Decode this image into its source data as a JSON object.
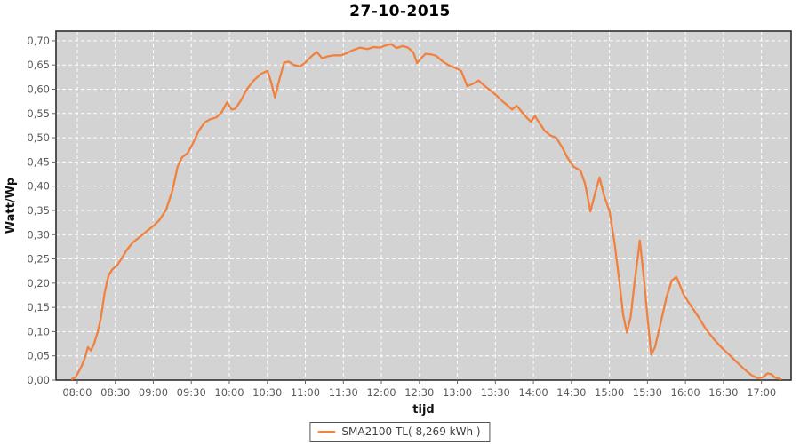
{
  "chart_data": {
    "type": "line",
    "title": "27-10-2015",
    "xlabel": "tijd",
    "ylabel": "Watt/Wp",
    "xlim_hours": [
      7.72,
      17.39
    ],
    "ylim": [
      0,
      0.72
    ],
    "grid": {
      "shown": true,
      "style": "dashed",
      "color": "#ffffff"
    },
    "x_ticks": [
      {
        "hour": 8.0,
        "label": "08:00"
      },
      {
        "hour": 8.5,
        "label": "08:30"
      },
      {
        "hour": 9.0,
        "label": "09:00"
      },
      {
        "hour": 9.5,
        "label": "09:30"
      },
      {
        "hour": 10.0,
        "label": "10:00"
      },
      {
        "hour": 10.5,
        "label": "10:30"
      },
      {
        "hour": 11.0,
        "label": "11:00"
      },
      {
        "hour": 11.5,
        "label": "11:30"
      },
      {
        "hour": 12.0,
        "label": "12:00"
      },
      {
        "hour": 12.5,
        "label": "12:30"
      },
      {
        "hour": 13.0,
        "label": "13:00"
      },
      {
        "hour": 13.5,
        "label": "13:30"
      },
      {
        "hour": 14.0,
        "label": "14:00"
      },
      {
        "hour": 14.5,
        "label": "14:30"
      },
      {
        "hour": 15.0,
        "label": "15:00"
      },
      {
        "hour": 15.5,
        "label": "15:30"
      },
      {
        "hour": 16.0,
        "label": "16:00"
      },
      {
        "hour": 16.5,
        "label": "16:30"
      },
      {
        "hour": 17.0,
        "label": "17:00"
      }
    ],
    "y_ticks": [
      {
        "value": 0.0,
        "label": "0,00"
      },
      {
        "value": 0.05,
        "label": "0,05"
      },
      {
        "value": 0.1,
        "label": "0,10"
      },
      {
        "value": 0.15,
        "label": "0,15"
      },
      {
        "value": 0.2,
        "label": "0,20"
      },
      {
        "value": 0.25,
        "label": "0,25"
      },
      {
        "value": 0.3,
        "label": "0,30"
      },
      {
        "value": 0.35,
        "label": "0,35"
      },
      {
        "value": 0.4,
        "label": "0,40"
      },
      {
        "value": 0.45,
        "label": "0,45"
      },
      {
        "value": 0.5,
        "label": "0,50"
      },
      {
        "value": 0.55,
        "label": "0,55"
      },
      {
        "value": 0.6,
        "label": "0,60"
      },
      {
        "value": 0.65,
        "label": "0,65"
      },
      {
        "value": 0.7,
        "label": "0,70"
      }
    ],
    "legend": {
      "position": "bottom-center",
      "entries": [
        {
          "label": "SMA2100 TL( 8,269 kWh )",
          "color": "#f0813f"
        }
      ]
    },
    "series": [
      {
        "name": "SMA2100 TL( 8,269 kWh )",
        "color": "#f0813f",
        "points": [
          [
            7.93,
            0.0
          ],
          [
            7.98,
            0.006
          ],
          [
            8.02,
            0.018
          ],
          [
            8.06,
            0.03
          ],
          [
            8.1,
            0.046
          ],
          [
            8.14,
            0.068
          ],
          [
            8.18,
            0.061
          ],
          [
            8.22,
            0.075
          ],
          [
            8.27,
            0.1
          ],
          [
            8.31,
            0.128
          ],
          [
            8.36,
            0.18
          ],
          [
            8.41,
            0.215
          ],
          [
            8.46,
            0.228
          ],
          [
            8.52,
            0.236
          ],
          [
            8.58,
            0.25
          ],
          [
            8.65,
            0.268
          ],
          [
            8.73,
            0.284
          ],
          [
            8.82,
            0.295
          ],
          [
            8.92,
            0.308
          ],
          [
            9.0,
            0.318
          ],
          [
            9.08,
            0.33
          ],
          [
            9.17,
            0.352
          ],
          [
            9.25,
            0.39
          ],
          [
            9.32,
            0.44
          ],
          [
            9.38,
            0.46
          ],
          [
            9.45,
            0.468
          ],
          [
            9.52,
            0.488
          ],
          [
            9.6,
            0.515
          ],
          [
            9.68,
            0.532
          ],
          [
            9.75,
            0.538
          ],
          [
            9.83,
            0.542
          ],
          [
            9.9,
            0.553
          ],
          [
            9.97,
            0.573
          ],
          [
            10.03,
            0.558
          ],
          [
            10.08,
            0.56
          ],
          [
            10.15,
            0.576
          ],
          [
            10.23,
            0.6
          ],
          [
            10.32,
            0.618
          ],
          [
            10.42,
            0.632
          ],
          [
            10.5,
            0.638
          ],
          [
            10.55,
            0.615
          ],
          [
            10.6,
            0.583
          ],
          [
            10.65,
            0.615
          ],
          [
            10.72,
            0.655
          ],
          [
            10.78,
            0.657
          ],
          [
            10.85,
            0.65
          ],
          [
            10.93,
            0.647
          ],
          [
            11.0,
            0.655
          ],
          [
            11.08,
            0.668
          ],
          [
            11.15,
            0.677
          ],
          [
            11.22,
            0.664
          ],
          [
            11.3,
            0.668
          ],
          [
            11.38,
            0.67
          ],
          [
            11.47,
            0.67
          ],
          [
            11.55,
            0.675
          ],
          [
            11.63,
            0.681
          ],
          [
            11.72,
            0.686
          ],
          [
            11.82,
            0.683
          ],
          [
            11.9,
            0.687
          ],
          [
            11.98,
            0.686
          ],
          [
            12.07,
            0.691
          ],
          [
            12.13,
            0.693
          ],
          [
            12.2,
            0.685
          ],
          [
            12.28,
            0.689
          ],
          [
            12.35,
            0.686
          ],
          [
            12.42,
            0.676
          ],
          [
            12.47,
            0.654
          ],
          [
            12.53,
            0.665
          ],
          [
            12.58,
            0.673
          ],
          [
            12.65,
            0.672
          ],
          [
            12.72,
            0.669
          ],
          [
            12.8,
            0.658
          ],
          [
            12.88,
            0.65
          ],
          [
            12.97,
            0.644
          ],
          [
            13.05,
            0.638
          ],
          [
            13.13,
            0.606
          ],
          [
            13.2,
            0.611
          ],
          [
            13.28,
            0.618
          ],
          [
            13.35,
            0.608
          ],
          [
            13.43,
            0.598
          ],
          [
            13.5,
            0.589
          ],
          [
            13.58,
            0.577
          ],
          [
            13.65,
            0.568
          ],
          [
            13.72,
            0.558
          ],
          [
            13.78,
            0.566
          ],
          [
            13.85,
            0.553
          ],
          [
            13.92,
            0.54
          ],
          [
            13.97,
            0.533
          ],
          [
            14.02,
            0.545
          ],
          [
            14.08,
            0.53
          ],
          [
            14.15,
            0.514
          ],
          [
            14.22,
            0.505
          ],
          [
            14.3,
            0.5
          ],
          [
            14.38,
            0.48
          ],
          [
            14.45,
            0.458
          ],
          [
            14.53,
            0.44
          ],
          [
            14.62,
            0.432
          ],
          [
            14.68,
            0.405
          ],
          [
            14.75,
            0.348
          ],
          [
            14.82,
            0.39
          ],
          [
            14.87,
            0.418
          ],
          [
            14.93,
            0.38
          ],
          [
            15.0,
            0.35
          ],
          [
            15.07,
            0.28
          ],
          [
            15.13,
            0.205
          ],
          [
            15.18,
            0.135
          ],
          [
            15.23,
            0.098
          ],
          [
            15.28,
            0.13
          ],
          [
            15.33,
            0.2
          ],
          [
            15.38,
            0.262
          ],
          [
            15.4,
            0.288
          ],
          [
            15.45,
            0.215
          ],
          [
            15.5,
            0.13
          ],
          [
            15.55,
            0.052
          ],
          [
            15.6,
            0.068
          ],
          [
            15.67,
            0.115
          ],
          [
            15.75,
            0.17
          ],
          [
            15.82,
            0.205
          ],
          [
            15.88,
            0.213
          ],
          [
            15.93,
            0.195
          ],
          [
            15.97,
            0.178
          ],
          [
            16.03,
            0.163
          ],
          [
            16.1,
            0.147
          ],
          [
            16.18,
            0.128
          ],
          [
            16.27,
            0.105
          ],
          [
            16.37,
            0.085
          ],
          [
            16.47,
            0.068
          ],
          [
            16.57,
            0.053
          ],
          [
            16.67,
            0.038
          ],
          [
            16.77,
            0.023
          ],
          [
            16.87,
            0.01
          ],
          [
            16.95,
            0.004
          ],
          [
            17.02,
            0.006
          ],
          [
            17.08,
            0.014
          ],
          [
            17.13,
            0.012
          ],
          [
            17.18,
            0.005
          ],
          [
            17.25,
            0.002
          ]
        ]
      }
    ]
  },
  "colors": {
    "page_bg": "#ffffff",
    "plot_bg": "#d3d3d3",
    "grid": "#ffffff",
    "line": "#f0813f",
    "axis_border": "#2e2e2e",
    "tick": "#666666",
    "tick_label": "#5a5a5a",
    "title_color": "#000000",
    "axis_title_color": "#111111",
    "legend_border": "#555555",
    "legend_text": "#3f3f3f"
  }
}
